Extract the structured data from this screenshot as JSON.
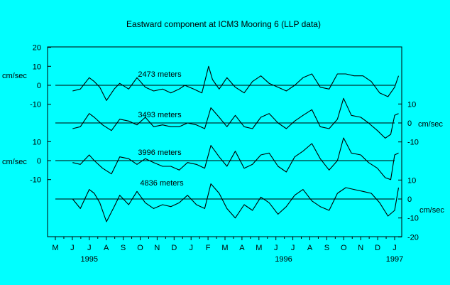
{
  "chart_data": {
    "type": "line",
    "title": "Eastward component at ICM3 Mooring 6 (LLP data)",
    "x_start": "1995-05",
    "x_end": "1997-01",
    "month_ticks": [
      "M",
      "J",
      "J",
      "A",
      "S",
      "O",
      "N",
      "D",
      "J",
      "F",
      "M",
      "A",
      "M",
      "J",
      "J",
      "A",
      "S",
      "O",
      "N",
      "D",
      "J"
    ],
    "year_labels": [
      "1995",
      "1996",
      "1997"
    ],
    "unit_label": "cm/sec",
    "series": [
      {
        "name": "2473 meters",
        "axis_side": "left",
        "ticks": [
          "20",
          "10",
          "0",
          "-10"
        ],
        "ylim": [
          -10,
          20
        ],
        "x": [
          "1995-06-01",
          "1995-06-15",
          "1995-07-01",
          "1995-07-10",
          "1995-07-20",
          "1995-08-01",
          "1995-08-15",
          "1995-08-25",
          "1995-09-10",
          "1995-09-25",
          "1995-10-10",
          "1995-10-25",
          "1995-11-10",
          "1995-11-25",
          "1995-12-10",
          "1995-12-20",
          "1996-01-05",
          "1996-01-20",
          "1996-02-01",
          "1996-02-08",
          "1996-02-20",
          "1996-03-05",
          "1996-03-20",
          "1996-04-05",
          "1996-04-20",
          "1996-05-05",
          "1996-05-20",
          "1996-06-05",
          "1996-06-20",
          "1996-07-05",
          "1996-07-20",
          "1996-08-05",
          "1996-08-20",
          "1996-09-05",
          "1996-09-20",
          "1996-10-05",
          "1996-10-20",
          "1996-11-05",
          "1996-11-20",
          "1996-12-05",
          "1996-12-20",
          "1997-01-01",
          "1997-01-08"
        ],
        "values": [
          -3,
          -2,
          4,
          2,
          -1,
          -8,
          -2,
          1,
          -2,
          4,
          -1,
          -3,
          -2,
          -4,
          -2,
          0,
          -2,
          -4,
          10,
          3,
          -2,
          4,
          -1,
          -4,
          2,
          5,
          1,
          -1,
          -3,
          0,
          4,
          6,
          -1,
          -2,
          6,
          6,
          5,
          5,
          2,
          -4,
          -6,
          -1,
          5
        ]
      },
      {
        "name": "3493 meters",
        "axis_side": "right",
        "ticks": [
          "10",
          "0",
          "-10"
        ],
        "ylim": [
          -10,
          10
        ],
        "x": [
          "1995-06-01",
          "1995-06-15",
          "1995-07-01",
          "1995-07-10",
          "1995-07-25",
          "1995-08-10",
          "1995-08-25",
          "1995-09-10",
          "1995-09-25",
          "1995-10-10",
          "1995-10-25",
          "1995-11-10",
          "1995-11-25",
          "1995-12-10",
          "1995-12-25",
          "1996-01-10",
          "1996-01-25",
          "1996-02-05",
          "1996-02-20",
          "1996-03-05",
          "1996-03-20",
          "1996-04-05",
          "1996-04-20",
          "1996-05-05",
          "1996-05-20",
          "1996-06-05",
          "1996-06-20",
          "1996-07-05",
          "1996-07-20",
          "1996-08-05",
          "1996-08-20",
          "1996-09-05",
          "1996-09-20",
          "1996-10-01",
          "1996-10-15",
          "1996-11-01",
          "1996-11-15",
          "1996-12-01",
          "1996-12-15",
          "1996-12-25",
          "1997-01-01",
          "1997-01-08"
        ],
        "values": [
          -3,
          -2,
          5,
          3,
          -1,
          -4,
          2,
          1,
          -1,
          3,
          -2,
          -1,
          -2,
          -2,
          0,
          -1,
          -3,
          8,
          3,
          -2,
          4,
          -2,
          -3,
          3,
          5,
          0,
          -3,
          1,
          4,
          7,
          -2,
          -3,
          2,
          13,
          4,
          3,
          0,
          -4,
          -8,
          -6,
          4,
          5
        ]
      },
      {
        "name": "3996 meters",
        "axis_side": "left",
        "ticks": [
          "10",
          "0",
          "-10"
        ],
        "ylim": [
          -10,
          10
        ],
        "x": [
          "1995-06-01",
          "1995-06-15",
          "1995-07-01",
          "1995-07-10",
          "1995-07-25",
          "1995-08-10",
          "1995-08-25",
          "1995-09-10",
          "1995-09-25",
          "1995-10-10",
          "1995-10-25",
          "1995-11-10",
          "1995-11-25",
          "1995-12-10",
          "1995-12-25",
          "1996-01-10",
          "1996-01-25",
          "1996-02-05",
          "1996-02-20",
          "1996-03-05",
          "1996-03-20",
          "1996-04-05",
          "1996-04-20",
          "1996-05-05",
          "1996-05-20",
          "1996-06-05",
          "1996-06-20",
          "1996-07-05",
          "1996-07-20",
          "1996-08-05",
          "1996-08-20",
          "1996-09-05",
          "1996-09-20",
          "1996-10-01",
          "1996-10-15",
          "1996-11-01",
          "1996-11-15",
          "1996-12-01",
          "1996-12-15",
          "1996-12-25",
          "1997-01-01",
          "1997-01-08"
        ],
        "values": [
          -1,
          -2,
          3,
          0,
          -4,
          -7,
          2,
          1,
          -2,
          1,
          -1,
          -3,
          -3,
          -5,
          -1,
          -2,
          -4,
          8,
          2,
          -3,
          5,
          -4,
          -2,
          3,
          4,
          -3,
          -6,
          2,
          5,
          9,
          1,
          -5,
          0,
          12,
          4,
          3,
          -1,
          -4,
          -9,
          -10,
          3,
          4
        ]
      },
      {
        "name": "4836 meters",
        "axis_side": "right",
        "ticks": [
          "10",
          "0",
          "-10",
          "-20"
        ],
        "ylim": [
          -20,
          10
        ],
        "x": [
          "1995-06-01",
          "1995-06-15",
          "1995-07-01",
          "1995-07-10",
          "1995-07-20",
          "1995-08-01",
          "1995-08-15",
          "1995-08-25",
          "1995-09-10",
          "1995-09-25",
          "1995-10-10",
          "1995-10-25",
          "1995-11-10",
          "1995-11-25",
          "1995-12-10",
          "1995-12-25",
          "1996-01-10",
          "1996-01-25",
          "1996-02-05",
          "1996-02-20",
          "1996-03-05",
          "1996-03-20",
          "1996-04-05",
          "1996-04-20",
          "1996-05-05",
          "1996-05-20",
          "1996-06-05",
          "1996-06-20",
          "1996-07-05",
          "1996-07-20",
          "1996-08-05",
          "1996-08-20",
          "1996-09-05",
          "1996-09-20",
          "1996-10-05",
          "1996-10-20",
          "1996-11-05",
          "1996-11-20",
          "1996-12-05",
          "1996-12-20",
          "1997-01-01",
          "1997-01-08"
        ],
        "values": [
          0,
          -5,
          5,
          3,
          -2,
          -12,
          -4,
          2,
          -3,
          4,
          -2,
          -5,
          -3,
          -4,
          -2,
          2,
          -3,
          -5,
          8,
          3,
          -5,
          -10,
          -3,
          -6,
          1,
          -2,
          -8,
          -4,
          2,
          5,
          -1,
          -4,
          -6,
          3,
          6,
          5,
          4,
          3,
          -2,
          -9,
          -6,
          6
        ]
      }
    ]
  }
}
